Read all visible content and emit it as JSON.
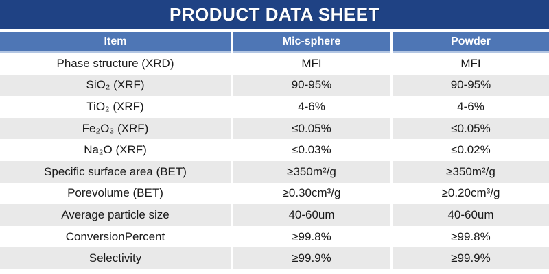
{
  "title": "PRODUCT DATA SHEET",
  "table": {
    "columns": [
      "Item",
      "Mic-sphere",
      "Powder"
    ],
    "rows": [
      {
        "item": "Phase structure (XRD)",
        "mic_sphere": "MFI",
        "powder": "MFI"
      },
      {
        "item": "SiO₂ (XRF)",
        "mic_sphere": "90-95%",
        "powder": "90-95%"
      },
      {
        "item": "TiO₂ (XRF)",
        "mic_sphere": "4-6%",
        "powder": "4-6%"
      },
      {
        "item": "Fe₂O₃ (XRF)",
        "mic_sphere": "≤0.05%",
        "powder": "≤0.05%"
      },
      {
        "item": "Na₂O (XRF)",
        "mic_sphere": "≤0.03%",
        "powder": "≤0.02%"
      },
      {
        "item": "Specific surface area (BET)",
        "mic_sphere": "≥350m²/g",
        "powder": "≥350m²/g"
      },
      {
        "item": "Porevolume (BET)",
        "mic_sphere": "≥0.30cm³/g",
        "powder": "≥0.20cm³/g"
      },
      {
        "item": "Average particle size",
        "mic_sphere": "40-60um",
        "powder": "40-60um"
      },
      {
        "item": "ConversionPercent",
        "mic_sphere": "≥99.8%",
        "powder": "≥99.8%"
      },
      {
        "item": "Selectivity",
        "mic_sphere": "≥99.9%",
        "powder": "≥99.9%"
      }
    ]
  },
  "colors": {
    "banner_bg": "#1f4284",
    "header_bg": "#4e76b5",
    "header_underline": "#b3c6e3",
    "row_alt_bg": "#e9e9e9",
    "row_bg": "#ffffff",
    "header_text": "#ffffff",
    "body_text": "#1a1a1a"
  }
}
